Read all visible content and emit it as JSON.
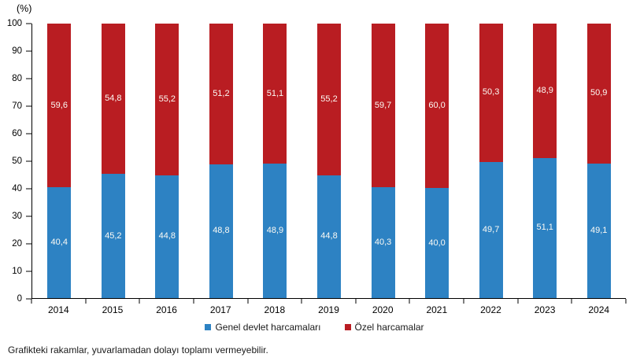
{
  "chart_data": {
    "type": "bar",
    "stacked": true,
    "title": "",
    "unit_label": "(%)",
    "categories": [
      "2014",
      "2015",
      "2016",
      "2017",
      "2018",
      "2019",
      "2020",
      "2021",
      "2022",
      "2023",
      "2024"
    ],
    "series": [
      {
        "name": "Genel devlet harcamaları",
        "color": "#2d82c3",
        "values": [
          40.4,
          45.2,
          44.8,
          48.8,
          48.9,
          44.8,
          40.3,
          40.0,
          49.7,
          51.1,
          49.1
        ]
      },
      {
        "name": "Özel harcamalar",
        "color": "#b91d22",
        "values": [
          59.6,
          54.8,
          55.2,
          51.2,
          51.1,
          55.2,
          59.7,
          60.0,
          50.3,
          48.9,
          50.9
        ]
      }
    ],
    "ylim": [
      0,
      100
    ],
    "ytick_step": 10,
    "grid": false,
    "legend_position": "bottom",
    "decimal_separator": ","
  },
  "footnote": "Grafikteki rakamlar, yuvarlamadan dolayı toplamı vermeyebilir."
}
